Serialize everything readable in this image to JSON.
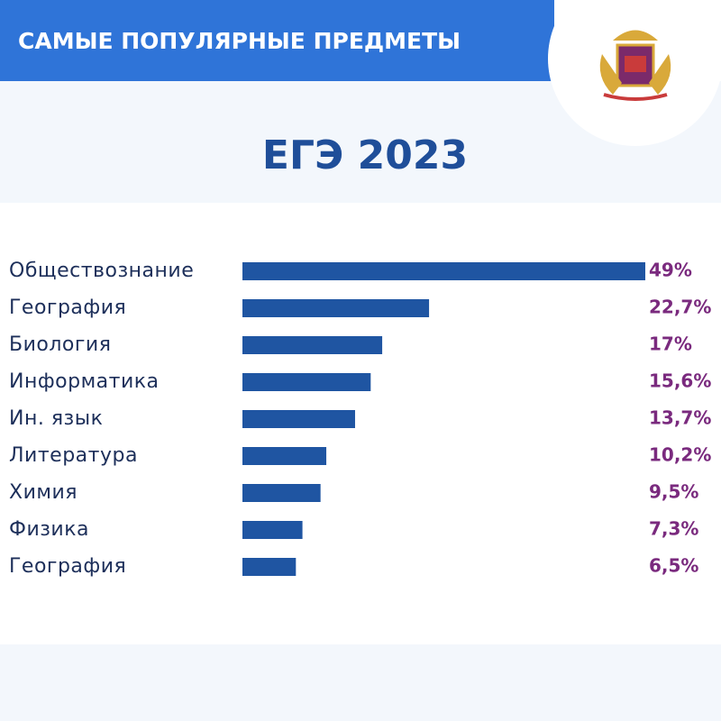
{
  "header": {
    "title": "САМЫЕ ПОПУЛЯРНЫЕ ПРЕДМЕТЫ"
  },
  "chart_data": {
    "type": "bar",
    "orientation": "horizontal",
    "title": "ЕГЭ 2023",
    "categories": [
      "Обществознание",
      "География",
      "Биология",
      "Информатика",
      "Ин. язык",
      "Литература",
      "Химия",
      "Физика",
      "География"
    ],
    "values": [
      49,
      22.7,
      17,
      15.6,
      13.7,
      10.2,
      9.5,
      7.3,
      6.5
    ],
    "value_labels": [
      "49%",
      "22,7%",
      "17%",
      "15,6%",
      "13,7%",
      "10,2%",
      "9,5%",
      "7,3%",
      "6,5%"
    ],
    "color": "#1f55a2",
    "label_color": "#7a2a7e"
  }
}
